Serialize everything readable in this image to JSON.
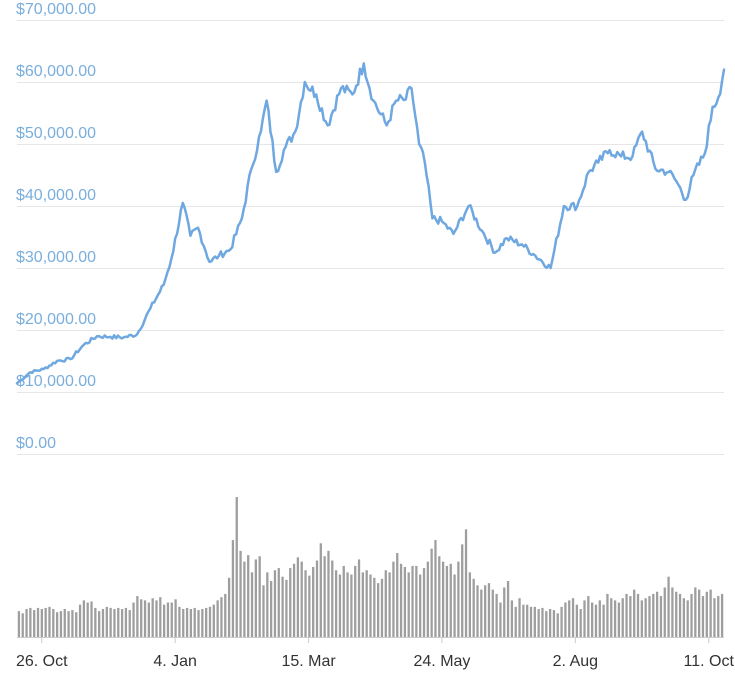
{
  "chart_data": {
    "type": "line",
    "price_chart": {
      "series": [
        {
          "x": [
            "2020-10-13",
            "2020-10-20",
            "2020-10-27",
            "2020-11-03",
            "2020-11-10",
            "2020-11-17",
            "2020-11-24",
            "2020-12-01",
            "2020-12-08",
            "2020-12-15",
            "2020-12-22",
            "2020-12-29",
            "2021-01-02",
            "2021-01-08",
            "2021-01-12",
            "2021-01-16",
            "2021-01-22",
            "2021-01-27",
            "2021-02-02",
            "2021-02-08",
            "2021-02-13",
            "2021-02-18",
            "2021-02-21",
            "2021-02-26",
            "2021-03-02",
            "2021-03-08",
            "2021-03-13",
            "2021-03-19",
            "2021-03-25",
            "2021-04-01",
            "2021-04-07",
            "2021-04-13",
            "2021-04-18",
            "2021-04-25",
            "2021-04-30",
            "2021-05-05",
            "2021-05-08",
            "2021-05-12",
            "2021-05-15",
            "2021-05-19",
            "2021-05-24",
            "2021-05-30",
            "2021-06-07",
            "2021-06-14",
            "2021-06-21",
            "2021-06-27",
            "2021-07-05",
            "2021-07-12",
            "2021-07-20",
            "2021-07-27",
            "2021-08-03",
            "2021-08-09",
            "2021-08-14",
            "2021-08-20",
            "2021-08-26",
            "2021-09-01",
            "2021-09-06",
            "2021-09-13",
            "2021-09-20",
            "2021-09-24",
            "2021-09-29",
            "2021-10-03",
            "2021-10-09",
            "2021-10-13",
            "2021-10-16",
            "2021-10-19"
          ],
          "values": [
            11400,
            13200,
            13700,
            15000,
            15300,
            17600,
            19000,
            18900,
            18800,
            19300,
            23500,
            27300,
            31500,
            40500,
            35200,
            36500,
            31000,
            32000,
            33000,
            38000,
            46000,
            52000,
            57000,
            45500,
            49000,
            52000,
            60000,
            58000,
            53000,
            59000,
            58000,
            63000,
            57000,
            53000,
            57000,
            57200,
            59000,
            50000,
            47000,
            38000,
            37500,
            35500,
            40000,
            36000,
            32500,
            34800,
            33800,
            32000,
            30000,
            40000,
            40000,
            45500,
            47000,
            49000,
            48000,
            48000,
            52000,
            46000,
            45500,
            44000,
            41000,
            45000,
            48500,
            56000,
            57500,
            62000
          ]
        }
      ],
      "ylim": [
        0,
        70000
      ],
      "yticks": [
        "$0.00",
        "$10,000.00",
        "$20,000.00",
        "$30,000.00",
        "$40,000.00",
        "$50,000.00",
        "$60,000.00",
        "$70,000.00"
      ],
      "color": "#6fa8e0"
    },
    "volume_chart": {
      "x_start": "2020-10-13",
      "x_end": "2021-10-19",
      "values": [
        24,
        22,
        26,
        27,
        25,
        27,
        26,
        27,
        28,
        26,
        23,
        24,
        26,
        24,
        25,
        23,
        30,
        34,
        32,
        33,
        27,
        24,
        26,
        28,
        27,
        26,
        27,
        26,
        27,
        25,
        32,
        38,
        35,
        34,
        32,
        36,
        34,
        37,
        30,
        32,
        32,
        35,
        28,
        26,
        27,
        26,
        27,
        25,
        26,
        27,
        28,
        30,
        34,
        37,
        40,
        55,
        90,
        130,
        80,
        70,
        76,
        60,
        72,
        75,
        48,
        60,
        52,
        62,
        64,
        56,
        53,
        64,
        68,
        74,
        70,
        62,
        57,
        65,
        71,
        87,
        75,
        80,
        71,
        62,
        58,
        66,
        60,
        58,
        66,
        72,
        60,
        62,
        58,
        55,
        50,
        54,
        62,
        60,
        70,
        78,
        68,
        65,
        60,
        66,
        66,
        58,
        64,
        70,
        82,
        90,
        75,
        70,
        66,
        68,
        58,
        70,
        86,
        100,
        60,
        54,
        48,
        44,
        48,
        50,
        44,
        40,
        32,
        46,
        52,
        34,
        28,
        36,
        30,
        30,
        28,
        28,
        26,
        27,
        24,
        26,
        25,
        22,
        28,
        32,
        34,
        36,
        30,
        26,
        34,
        38,
        32,
        30,
        34,
        30,
        40,
        36,
        34,
        32,
        36,
        40,
        38,
        44,
        40,
        34,
        36,
        38,
        40,
        42,
        38,
        46,
        56,
        46,
        42,
        40,
        36,
        34,
        40,
        46,
        44,
        38,
        42,
        44,
        36,
        38,
        40
      ],
      "color": "#9e9e9e"
    },
    "x_tick_labels": [
      "26. Oct",
      "4. Jan",
      "15. Mar",
      "24. May",
      "2. Aug",
      "11. Oct"
    ],
    "x_tick_dates": [
      "2020-10-26",
      "2021-01-04",
      "2021-03-15",
      "2021-05-24",
      "2021-08-02",
      "2021-10-11"
    ],
    "grid": true,
    "gridline_color": "#e6e6e6",
    "label_color": "#7aaedc",
    "xlabel_color": "#333333",
    "title": "",
    "xlabel": "",
    "ylabel": ""
  }
}
